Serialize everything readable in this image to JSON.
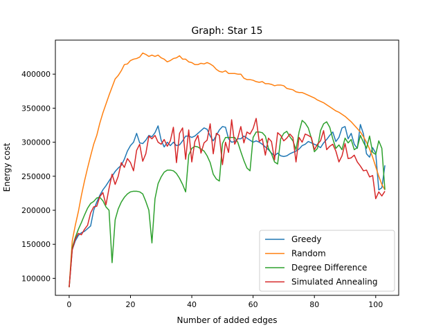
{
  "chart_data": {
    "type": "line",
    "title": "Graph: Star 15",
    "xlabel": "Number of added edges",
    "ylabel": "Energy cost",
    "xlim": [
      -4.5,
      107.5
    ],
    "ylim": [
      75000,
      450000
    ],
    "xticks": [
      0,
      20,
      40,
      60,
      80,
      100
    ],
    "yticks": [
      100000,
      150000,
      200000,
      250000,
      300000,
      350000,
      400000
    ],
    "legend_position": "lower-right",
    "x": [
      0,
      1,
      2,
      3,
      4,
      5,
      6,
      7,
      8,
      9,
      10,
      11,
      12,
      13,
      14,
      15,
      16,
      17,
      18,
      19,
      20,
      21,
      22,
      23,
      24,
      25,
      26,
      27,
      28,
      29,
      30,
      31,
      32,
      33,
      34,
      35,
      36,
      37,
      38,
      39,
      40,
      41,
      42,
      43,
      44,
      45,
      46,
      47,
      48,
      49,
      50,
      51,
      52,
      53,
      54,
      55,
      56,
      57,
      58,
      59,
      60,
      61,
      62,
      63,
      64,
      65,
      66,
      67,
      68,
      69,
      70,
      71,
      72,
      73,
      74,
      75,
      76,
      77,
      78,
      79,
      80,
      81,
      82,
      83,
      84,
      85,
      86,
      87,
      88,
      89,
      90,
      91,
      92,
      93,
      94,
      95,
      96,
      97,
      98,
      99,
      100,
      101,
      102,
      103
    ],
    "series": [
      {
        "name": "Greedy",
        "color": "#1f77b4",
        "values": [
          87000,
          142000,
          155000,
          163000,
          167000,
          169000,
          173000,
          177000,
          200000,
          212000,
          222000,
          230000,
          236000,
          243000,
          250000,
          257000,
          262000,
          266000,
          275000,
          287000,
          295000,
          300000,
          313000,
          299000,
          298000,
          303000,
          310000,
          308000,
          314000,
          324000,
          303000,
          293000,
          300000,
          295000,
          300000,
          295000,
          296000,
          302000,
          309000,
          309000,
          307000,
          309000,
          313000,
          317000,
          321000,
          319000,
          309000,
          302000,
          310000,
          318000,
          323000,
          322000,
          305000,
          300000,
          301000,
          305000,
          305000,
          309000,
          306000,
          303000,
          300000,
          302000,
          300000,
          297000,
          293000,
          289000,
          284000,
          280000,
          284000,
          280000,
          279000,
          280000,
          283000,
          285000,
          287000,
          290000,
          295000,
          297000,
          301000,
          299000,
          297000,
          295000,
          292000,
          299000,
          304000,
          310000,
          315000,
          301000,
          307000,
          321000,
          323000,
          305000,
          313000,
          297000,
          291000,
          326000,
          312000,
          283000,
          278000,
          292000,
          284000,
          230000,
          233000,
          266000
        ]
      },
      {
        "name": "Random",
        "color": "#ff7f0e",
        "values": [
          87000,
          155000,
          178000,
          198000,
          222000,
          243000,
          262000,
          280000,
          297000,
          310000,
          328000,
          343000,
          356000,
          369000,
          381000,
          393000,
          398000,
          405000,
          414000,
          415000,
          420000,
          422000,
          423000,
          425000,
          431000,
          429000,
          426000,
          428000,
          426000,
          428000,
          424000,
          422000,
          418000,
          420000,
          423000,
          424000,
          427000,
          422000,
          422000,
          418000,
          417000,
          414000,
          414000,
          416000,
          415000,
          417000,
          415000,
          412000,
          407000,
          404000,
          403000,
          405000,
          401000,
          401000,
          401000,
          400000,
          400000,
          394000,
          392000,
          392000,
          391000,
          389000,
          388000,
          389000,
          386000,
          386000,
          385000,
          383000,
          384000,
          384000,
          383000,
          379000,
          378000,
          377000,
          374000,
          373000,
          373000,
          371000,
          369000,
          367000,
          365000,
          362000,
          360000,
          358000,
          355000,
          352000,
          349000,
          346000,
          344000,
          341000,
          338000,
          334000,
          330000,
          325000,
          320000,
          315000,
          308000,
          300000,
          290000,
          278000,
          264000,
          250000,
          238000,
          230000
        ]
      },
      {
        "name": "Degree Difference",
        "color": "#2ca02c",
        "values": [
          87000,
          145000,
          160000,
          172000,
          182000,
          193000,
          203000,
          210000,
          213000,
          218000,
          219000,
          214000,
          205000,
          200000,
          123000,
          186000,
          202000,
          212000,
          219000,
          224000,
          227000,
          228000,
          228000,
          227000,
          224000,
          213000,
          200000,
          152000,
          217000,
          239000,
          249000,
          256000,
          259000,
          259000,
          258000,
          254000,
          247000,
          238000,
          227000,
          281000,
          291000,
          294000,
          293000,
          290000,
          287000,
          280000,
          270000,
          253000,
          246000,
          243000,
          298000,
          307000,
          307000,
          307000,
          307000,
          300000,
          286000,
          273000,
          262000,
          258000,
          307000,
          315000,
          315000,
          314000,
          309000,
          291000,
          283000,
          271000,
          268000,
          305000,
          313000,
          316000,
          308000,
          302000,
          289000,
          315000,
          332000,
          328000,
          321000,
          306000,
          286000,
          291000,
          317000,
          327000,
          330000,
          322000,
          305000,
          291000,
          296000,
          289000,
          306000,
          299000,
          304000,
          289000,
          292000,
          310000,
          300000,
          291000,
          309000,
          285000,
          282000,
          302000,
          291000,
          230000
        ]
      },
      {
        "name": "Simulated Annealing",
        "color": "#d62728",
        "values": [
          87000,
          142000,
          158000,
          166000,
          164000,
          172000,
          178000,
          196000,
          205000,
          206000,
          220000,
          226000,
          208000,
          232000,
          253000,
          238000,
          250000,
          270000,
          263000,
          276000,
          270000,
          258000,
          288000,
          297000,
          272000,
          283000,
          309000,
          305000,
          310000,
          300000,
          297000,
          304000,
          294000,
          302000,
          322000,
          270000,
          313000,
          321000,
          275000,
          318000,
          271000,
          301000,
          310000,
          284000,
          299000,
          303000,
          327000,
          283000,
          313000,
          310000,
          267000,
          300000,
          285000,
          333000,
          297000,
          306000,
          323000,
          299000,
          315000,
          312000,
          320000,
          335000,
          301000,
          305000,
          281000,
          306000,
          301000,
          274000,
          314000,
          310000,
          302000,
          306000,
          312000,
          307000,
          271000,
          307000,
          300000,
          312000,
          310000,
          307000,
          289000,
          297000,
          302000,
          317000,
          289000,
          294000,
          297000,
          287000,
          271000,
          280000,
          298000,
          276000,
          277000,
          281000,
          271000,
          265000,
          258000,
          259000,
          249000,
          251000,
          217000,
          227000,
          221000,
          228000
        ]
      }
    ]
  }
}
